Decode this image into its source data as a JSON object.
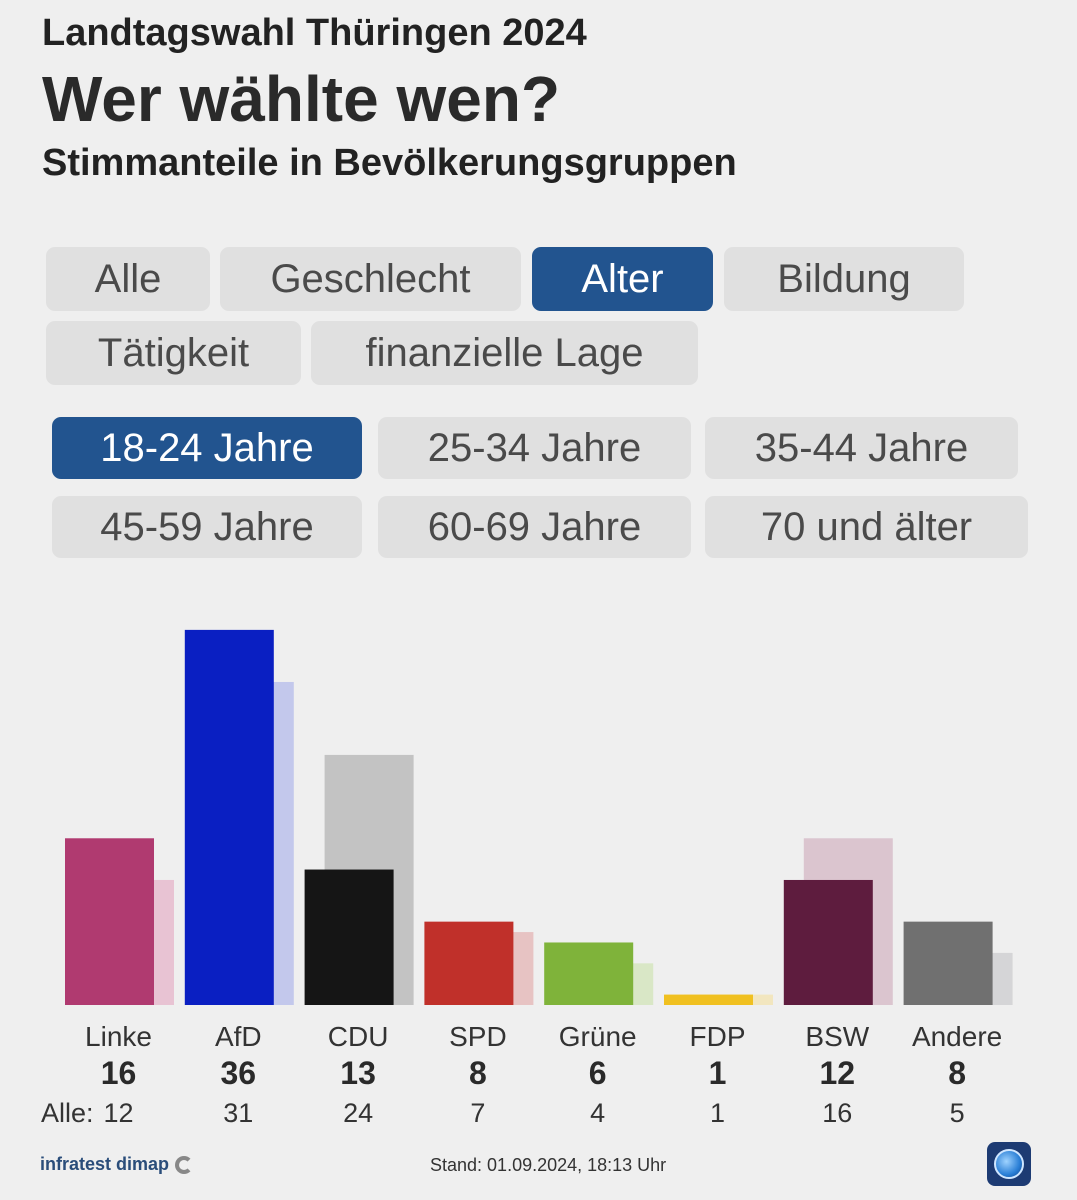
{
  "header": {
    "kicker": "Landtagswahl Thüringen 2024",
    "headline": "Wer wählte wen?",
    "subtitle": "Stimmanteile in Bevölkerungsgruppen"
  },
  "category_tabs": [
    {
      "label": "Alle",
      "active": false
    },
    {
      "label": "Geschlecht",
      "active": false
    },
    {
      "label": "Alter",
      "active": true
    },
    {
      "label": "Bildung",
      "active": false
    },
    {
      "label": "Tätigkeit",
      "active": false
    },
    {
      "label": "finanzielle Lage",
      "active": false
    }
  ],
  "age_tabs": [
    {
      "label": "18-24 Jahre",
      "active": true
    },
    {
      "label": "25-34 Jahre",
      "active": false
    },
    {
      "label": "35-44 Jahre",
      "active": false
    },
    {
      "label": "45-59 Jahre",
      "active": false
    },
    {
      "label": "60-69 Jahre",
      "active": false
    },
    {
      "label": "70 und älter",
      "active": false
    }
  ],
  "chart_data": {
    "type": "bar",
    "categories": [
      "Linke",
      "AfD",
      "CDU",
      "SPD",
      "Grüne",
      "FDP",
      "BSW",
      "Andere"
    ],
    "series": [
      {
        "values": [
          16,
          36,
          13,
          8,
          6,
          1,
          12,
          8
        ]
      },
      {
        "name": "Alle",
        "values": [
          12,
          31,
          24,
          7,
          4,
          1,
          16,
          5
        ]
      }
    ],
    "colors": [
      "#b03a70",
      "#0a1fc2",
      "#151515",
      "#c0302a",
      "#7fb33a",
      "#f0c020",
      "#5e1c3e",
      "#707070"
    ],
    "compare_colors": [
      "#e8c3d3",
      "#c3c8ec",
      "#c3c3c3",
      "#e7c3c3",
      "#d9e7c6",
      "#f2e6bf",
      "#dbc5cf",
      "#d5d5d7"
    ],
    "alle_prefix": "Alle:",
    "ylim": [
      0,
      36
    ]
  },
  "footer": {
    "source": "infratest dimap",
    "stand": "Stand: 01.09.2024, 18:13 Uhr"
  }
}
